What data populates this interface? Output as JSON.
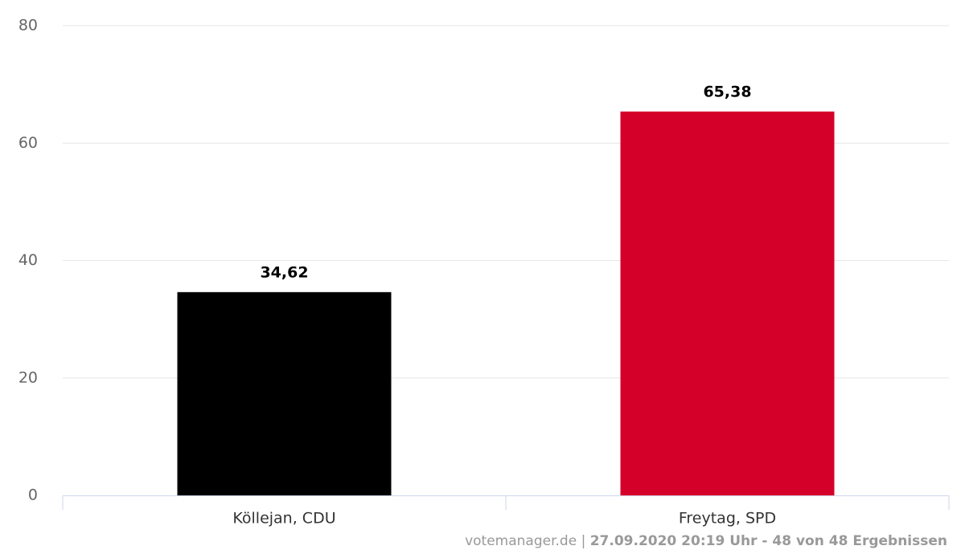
{
  "chart_data": {
    "type": "bar",
    "categories": [
      "Köllejan, CDU",
      "Freytag, SPD"
    ],
    "values": [
      34.62,
      65.38
    ],
    "value_labels": [
      "34,62",
      "65,38"
    ],
    "colors": [
      "#000000",
      "#d50029"
    ],
    "ylim": [
      0,
      80
    ],
    "yticks": [
      0,
      20,
      40,
      60,
      80
    ],
    "grid": true,
    "credits": [
      "votemanager.de |",
      "27.09.2020 20:19 Uhr - 48 von 48 Ergebnissen"
    ]
  }
}
